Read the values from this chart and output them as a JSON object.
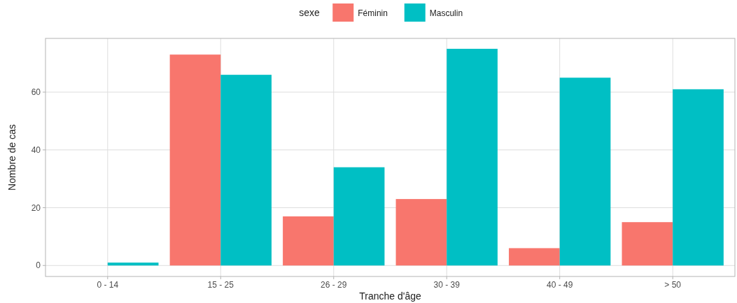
{
  "chart_data": {
    "type": "bar",
    "xlabel": "Tranche d'âge",
    "ylabel": "Nombre de cas",
    "legend_title": "sexe",
    "categories": [
      "0 - 14",
      "15 - 25",
      "26 - 29",
      "30 - 39",
      "40 - 49",
      "> 50"
    ],
    "series": [
      {
        "name": "Féminin",
        "color": "#f8766d",
        "values": [
          0,
          73,
          17,
          23,
          6,
          15
        ]
      },
      {
        "name": "Masculin",
        "color": "#00bfc4",
        "values": [
          1,
          66,
          34,
          75,
          65,
          61
        ]
      }
    ],
    "ylim": [
      -3.8,
      78.6
    ],
    "yticks": [
      0,
      20,
      40,
      60
    ],
    "grid": true,
    "legend": "top"
  }
}
